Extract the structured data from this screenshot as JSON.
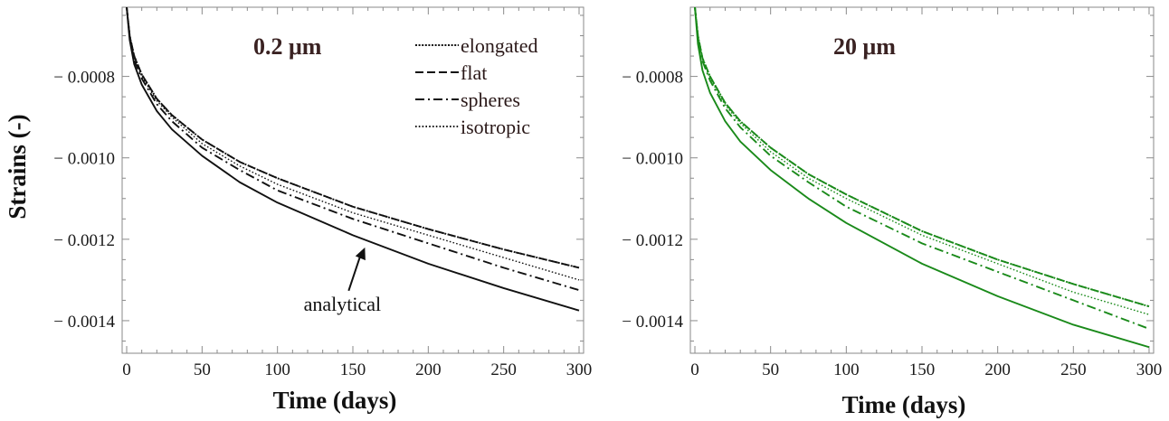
{
  "chart_data": [
    {
      "type": "line",
      "title": "0.2 μm",
      "xlabel": "Time (days)",
      "ylabel": "Strains (-)",
      "xlim": [
        -3,
        303
      ],
      "ylim": [
        -0.00148,
        -0.00063
      ],
      "xticks": [
        0,
        50,
        100,
        150,
        200,
        250,
        300
      ],
      "xtick_labels": [
        "0",
        "50",
        "100",
        "150",
        "200",
        "250",
        "300"
      ],
      "yticks": [
        -0.0008,
        -0.001,
        -0.0012,
        -0.0014
      ],
      "ytick_labels": [
        "− 0.0008",
        "− 0.0010",
        "− 0.0012",
        "− 0.0014"
      ],
      "grid": false,
      "legend_position": "top-right",
      "line_color": "#111111",
      "annotation": {
        "text": "analytical",
        "x": 158,
        "y": -0.00122
      },
      "series": [
        {
          "name": "elongated",
          "style": "dotted-fine",
          "x": [
            0,
            2,
            5,
            10,
            20,
            30,
            50,
            75,
            100,
            150,
            200,
            250,
            300
          ],
          "y": [
            -0.00063,
            -0.0007,
            -0.00075,
            -0.000795,
            -0.000855,
            -0.000895,
            -0.000955,
            -0.00101,
            -0.00105,
            -0.00112,
            -0.001175,
            -0.001225,
            -0.00127
          ]
        },
        {
          "name": "flat",
          "style": "dashed",
          "x": [
            0,
            2,
            5,
            10,
            20,
            30,
            50,
            75,
            100,
            150,
            200,
            250,
            300
          ],
          "y": [
            -0.00063,
            -0.0007,
            -0.00075,
            -0.000795,
            -0.000855,
            -0.000895,
            -0.000955,
            -0.00101,
            -0.00105,
            -0.00112,
            -0.001175,
            -0.001225,
            -0.00127
          ]
        },
        {
          "name": "spheres",
          "style": "dash-dot",
          "x": [
            0,
            2,
            5,
            10,
            20,
            30,
            50,
            75,
            100,
            150,
            200,
            250,
            300
          ],
          "y": [
            -0.00063,
            -0.0007,
            -0.00076,
            -0.000805,
            -0.000868,
            -0.00091,
            -0.000975,
            -0.00103,
            -0.00108,
            -0.00115,
            -0.00121,
            -0.00127,
            -0.001325
          ]
        },
        {
          "name": "isotropic",
          "style": "dotted",
          "x": [
            0,
            2,
            5,
            10,
            20,
            30,
            50,
            75,
            100,
            150,
            200,
            250,
            300
          ],
          "y": [
            -0.00063,
            -0.0007,
            -0.000755,
            -0.0008,
            -0.00086,
            -0.0009,
            -0.000965,
            -0.00102,
            -0.001065,
            -0.001135,
            -0.00119,
            -0.001245,
            -0.0013
          ]
        },
        {
          "name": "analytical",
          "style": "solid",
          "x": [
            0,
            2,
            5,
            10,
            20,
            30,
            50,
            75,
            100,
            150,
            200,
            250,
            300
          ],
          "y": [
            -0.00063,
            -0.00071,
            -0.00077,
            -0.00082,
            -0.000885,
            -0.00093,
            -0.000995,
            -0.00106,
            -0.00111,
            -0.00119,
            -0.00126,
            -0.00132,
            -0.001375
          ]
        }
      ]
    },
    {
      "type": "line",
      "title": "20 μm",
      "xlabel": "Time (days)",
      "ylabel": "",
      "xlim": [
        -3,
        303
      ],
      "ylim": [
        -0.00148,
        -0.00063
      ],
      "xticks": [
        0,
        50,
        100,
        150,
        200,
        250,
        300
      ],
      "xtick_labels": [
        "0",
        "50",
        "100",
        "150",
        "200",
        "250",
        "300"
      ],
      "yticks": [
        -0.0008,
        -0.001,
        -0.0012,
        -0.0014
      ],
      "ytick_labels": [
        "− 0.0008",
        "− 0.0010",
        "− 0.0012",
        "− 0.0014"
      ],
      "grid": false,
      "line_color": "#1a8a1a",
      "series": [
        {
          "name": "elongated",
          "style": "dotted-fine",
          "x": [
            0,
            2,
            5,
            10,
            20,
            30,
            50,
            75,
            100,
            150,
            200,
            250,
            300
          ],
          "y": [
            -0.00063,
            -0.0007,
            -0.000755,
            -0.0008,
            -0.000865,
            -0.00091,
            -0.000975,
            -0.00104,
            -0.00109,
            -0.00118,
            -0.00125,
            -0.00131,
            -0.001365
          ]
        },
        {
          "name": "flat",
          "style": "dashed",
          "x": [
            0,
            2,
            5,
            10,
            20,
            30,
            50,
            75,
            100,
            150,
            200,
            250,
            300
          ],
          "y": [
            -0.00063,
            -0.0007,
            -0.000755,
            -0.0008,
            -0.000865,
            -0.00091,
            -0.000975,
            -0.00104,
            -0.00109,
            -0.00118,
            -0.00125,
            -0.00131,
            -0.001365
          ]
        },
        {
          "name": "spheres",
          "style": "dash-dot",
          "x": [
            0,
            2,
            5,
            10,
            20,
            30,
            50,
            75,
            100,
            150,
            200,
            250,
            300
          ],
          "y": [
            -0.00063,
            -0.000705,
            -0.000762,
            -0.00081,
            -0.000878,
            -0.000925,
            -0.000995,
            -0.00106,
            -0.00112,
            -0.00121,
            -0.00128,
            -0.00135,
            -0.00142
          ]
        },
        {
          "name": "isotropic",
          "style": "dotted",
          "x": [
            0,
            2,
            5,
            10,
            20,
            30,
            50,
            75,
            100,
            150,
            200,
            250,
            300
          ],
          "y": [
            -0.00063,
            -0.000702,
            -0.000758,
            -0.000805,
            -0.00087,
            -0.000915,
            -0.000985,
            -0.00105,
            -0.0011,
            -0.00119,
            -0.00126,
            -0.00133,
            -0.001385
          ]
        },
        {
          "name": "analytical",
          "style": "solid",
          "x": [
            0,
            2,
            5,
            10,
            20,
            30,
            50,
            75,
            100,
            150,
            200,
            250,
            300
          ],
          "y": [
            -0.00063,
            -0.00072,
            -0.000785,
            -0.00084,
            -0.00091,
            -0.00096,
            -0.00103,
            -0.0011,
            -0.00116,
            -0.00126,
            -0.00134,
            -0.00141,
            -0.001465
          ]
        }
      ]
    }
  ]
}
